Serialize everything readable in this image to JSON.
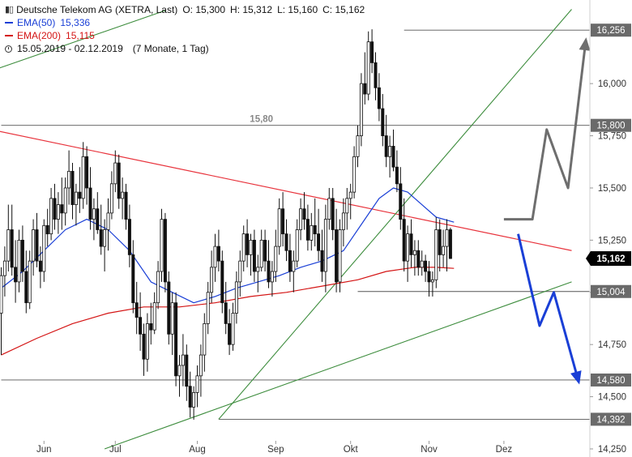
{
  "legend": {
    "title": "Deutsche Telekom AG (XETRA, Last)",
    "ohlc": {
      "o": "O: 15,300",
      "h": "H: 15,312",
      "l": "L: 15,160",
      "c": "C: 15,162"
    },
    "ema50": {
      "label": "EMA(50)",
      "value": "15,336",
      "color": "#1a3fd6"
    },
    "ema200": {
      "label": "EMA(200)",
      "value": "15,115",
      "color": "#d41414"
    },
    "range": "15.05.2019 - 02.12.2019",
    "period": "(7 Monate, 1 Tag)"
  },
  "chart_data": {
    "type": "candlestick",
    "ylim": [
      14.25,
      16.35
    ],
    "y_ticks": [
      {
        "v": 16.0,
        "label": "16,000"
      },
      {
        "v": 15.75,
        "label": "15,750"
      },
      {
        "v": 15.5,
        "label": "15,500"
      },
      {
        "v": 15.25,
        "label": "15,250"
      },
      {
        "v": 15.0,
        "label": "15,000"
      },
      {
        "v": 14.75,
        "label": "14,750"
      },
      {
        "v": 14.5,
        "label": "14,500"
      },
      {
        "v": 14.25,
        "label": "14,250"
      }
    ],
    "x_ticks": [
      {
        "label": "Jun",
        "i": 12
      },
      {
        "label": "Jul",
        "i": 32
      },
      {
        "label": "Aug",
        "i": 55
      },
      {
        "label": "Sep",
        "i": 77
      },
      {
        "label": "Okt",
        "i": 98
      },
      {
        "label": "Nov",
        "i": 120
      },
      {
        "label": "Dez",
        "i": 141
      }
    ],
    "levels": [
      {
        "v": 16.256,
        "label": "16,256",
        "style": "box",
        "from_i": 113
      },
      {
        "v": 15.8,
        "label": "15,800",
        "style": "box",
        "from_i": 0
      },
      {
        "v": 15.004,
        "label": "15,004",
        "style": "box",
        "from_i": 100
      },
      {
        "v": 14.58,
        "label": "14,580",
        "style": "box",
        "from_i": 0
      },
      {
        "v": 14.392,
        "label": "14,392",
        "style": "box",
        "from_i": 61
      },
      {
        "v": 15.162,
        "label": "15,162",
        "style": "last"
      }
    ],
    "note": {
      "text": "15,80",
      "i": 73,
      "v": 15.8
    },
    "candles": [
      [
        14.9,
        15.12,
        14.7,
        15.08
      ],
      [
        15.08,
        15.22,
        14.98,
        15.15
      ],
      [
        15.15,
        15.42,
        15.1,
        15.3
      ],
      [
        15.3,
        15.42,
        15.08,
        15.12
      ],
      [
        15.12,
        15.25,
        14.95,
        15.05
      ],
      [
        15.05,
        15.3,
        15.0,
        15.25
      ],
      [
        15.25,
        15.32,
        15.05,
        15.1
      ],
      [
        15.1,
        15.2,
        14.9,
        14.95
      ],
      [
        14.95,
        15.2,
        14.92,
        15.15
      ],
      [
        15.15,
        15.35,
        15.08,
        15.3
      ],
      [
        15.3,
        15.38,
        15.12,
        15.15
      ],
      [
        15.15,
        15.22,
        15.02,
        15.1
      ],
      [
        15.1,
        15.35,
        15.05,
        15.32
      ],
      [
        15.32,
        15.4,
        15.22,
        15.28
      ],
      [
        15.28,
        15.5,
        15.25,
        15.45
      ],
      [
        15.45,
        15.52,
        15.3,
        15.35
      ],
      [
        15.35,
        15.48,
        15.28,
        15.42
      ],
      [
        15.42,
        15.55,
        15.3,
        15.38
      ],
      [
        15.38,
        15.55,
        15.32,
        15.5
      ],
      [
        15.5,
        15.68,
        15.42,
        15.58
      ],
      [
        15.58,
        15.62,
        15.35,
        15.42
      ],
      [
        15.42,
        15.52,
        15.32,
        15.48
      ],
      [
        15.48,
        15.6,
        15.38,
        15.45
      ],
      [
        15.45,
        15.72,
        15.4,
        15.65
      ],
      [
        15.65,
        15.7,
        15.42,
        15.5
      ],
      [
        15.5,
        15.6,
        15.3,
        15.35
      ],
      [
        15.35,
        15.45,
        15.25,
        15.4
      ],
      [
        15.4,
        15.48,
        15.28,
        15.3
      ],
      [
        15.3,
        15.42,
        15.18,
        15.22
      ],
      [
        15.22,
        15.35,
        15.1,
        15.3
      ],
      [
        15.3,
        15.45,
        15.2,
        15.38
      ],
      [
        15.38,
        15.58,
        15.35,
        15.52
      ],
      [
        15.52,
        15.68,
        15.48,
        15.62
      ],
      [
        15.62,
        15.66,
        15.4,
        15.45
      ],
      [
        15.45,
        15.55,
        15.35,
        15.48
      ],
      [
        15.48,
        15.52,
        15.3,
        15.35
      ],
      [
        15.35,
        15.42,
        15.12,
        15.18
      ],
      [
        15.18,
        15.25,
        14.9,
        14.95
      ],
      [
        14.95,
        15.05,
        14.8,
        14.88
      ],
      [
        14.88,
        15.0,
        14.72,
        14.8
      ],
      [
        14.8,
        14.85,
        14.6,
        14.68
      ],
      [
        14.68,
        14.9,
        14.62,
        14.85
      ],
      [
        14.85,
        14.95,
        14.75,
        14.82
      ],
      [
        14.82,
        15.0,
        14.8,
        14.95
      ],
      [
        14.95,
        15.15,
        14.92,
        15.1
      ],
      [
        15.1,
        15.4,
        15.05,
        15.35
      ],
      [
        15.35,
        15.38,
        15.0,
        15.05
      ],
      [
        15.05,
        15.1,
        14.75,
        14.8
      ],
      [
        14.8,
        15.0,
        14.7,
        14.95
      ],
      [
        14.95,
        15.0,
        14.55,
        14.6
      ],
      [
        14.6,
        14.7,
        14.5,
        14.65
      ],
      [
        14.65,
        14.8,
        14.55,
        14.7
      ],
      [
        14.7,
        14.75,
        14.48,
        14.55
      ],
      [
        14.55,
        14.62,
        14.4,
        14.45
      ],
      [
        14.45,
        14.55,
        14.39,
        14.52
      ],
      [
        14.52,
        14.65,
        14.45,
        14.6
      ],
      [
        14.6,
        14.75,
        14.5,
        14.7
      ],
      [
        14.7,
        14.9,
        14.62,
        14.85
      ],
      [
        14.85,
        15.05,
        14.8,
        15.0
      ],
      [
        15.0,
        15.2,
        14.95,
        15.12
      ],
      [
        15.12,
        15.28,
        15.05,
        15.22
      ],
      [
        15.22,
        15.3,
        15.1,
        15.15
      ],
      [
        15.15,
        15.2,
        14.9,
        14.95
      ],
      [
        14.95,
        15.05,
        14.8,
        14.85
      ],
      [
        14.85,
        14.92,
        14.7,
        14.75
      ],
      [
        14.75,
        14.95,
        14.72,
        14.9
      ],
      [
        14.9,
        15.1,
        14.85,
        15.05
      ],
      [
        15.05,
        15.2,
        14.98,
        15.15
      ],
      [
        15.15,
        15.32,
        15.1,
        15.28
      ],
      [
        15.28,
        15.35,
        15.12,
        15.18
      ],
      [
        15.18,
        15.28,
        15.08,
        15.25
      ],
      [
        15.25,
        15.3,
        15.05,
        15.1
      ],
      [
        15.1,
        15.18,
        15.0,
        15.12
      ],
      [
        15.12,
        15.3,
        15.1,
        15.25
      ],
      [
        15.25,
        15.3,
        15.1,
        15.15
      ],
      [
        15.15,
        15.25,
        15.02,
        15.05
      ],
      [
        15.05,
        15.15,
        14.98,
        15.1
      ],
      [
        15.1,
        15.3,
        15.05,
        15.22
      ],
      [
        15.22,
        15.45,
        15.18,
        15.4
      ],
      [
        15.4,
        15.48,
        15.22,
        15.28
      ],
      [
        15.28,
        15.35,
        15.15,
        15.2
      ],
      [
        15.2,
        15.28,
        15.05,
        15.1
      ],
      [
        15.1,
        15.2,
        15.0,
        15.15
      ],
      [
        15.15,
        15.35,
        15.12,
        15.3
      ],
      [
        15.3,
        15.45,
        15.25,
        15.4
      ],
      [
        15.4,
        15.48,
        15.3,
        15.35
      ],
      [
        15.35,
        15.42,
        15.2,
        15.25
      ],
      [
        15.25,
        15.38,
        15.2,
        15.32
      ],
      [
        15.32,
        15.45,
        15.22,
        15.28
      ],
      [
        15.28,
        15.4,
        15.15,
        15.2
      ],
      [
        15.2,
        15.3,
        15.05,
        15.1
      ],
      [
        15.1,
        15.42,
        15.0,
        15.35
      ],
      [
        15.35,
        15.5,
        15.3,
        15.45
      ],
      [
        15.45,
        15.5,
        15.25,
        15.3
      ],
      [
        15.3,
        15.4,
        15.0,
        15.05
      ],
      [
        15.05,
        15.35,
        15.0,
        15.3
      ],
      [
        15.3,
        15.45,
        15.22,
        15.38
      ],
      [
        15.38,
        15.5,
        15.3,
        15.45
      ],
      [
        15.45,
        15.52,
        15.35,
        15.48
      ],
      [
        15.48,
        15.7,
        15.45,
        15.65
      ],
      [
        15.65,
        15.8,
        15.6,
        15.75
      ],
      [
        15.75,
        16.05,
        15.7,
        16.0
      ],
      [
        16.0,
        16.15,
        15.9,
        15.95
      ],
      [
        15.95,
        16.25,
        15.92,
        16.2
      ],
      [
        16.2,
        16.26,
        16.05,
        16.1
      ],
      [
        16.1,
        16.15,
        15.92,
        15.98
      ],
      [
        15.98,
        16.05,
        15.82,
        15.88
      ],
      [
        15.88,
        15.95,
        15.7,
        15.75
      ],
      [
        15.75,
        15.85,
        15.6,
        15.65
      ],
      [
        15.65,
        15.75,
        15.55,
        15.7
      ],
      [
        15.7,
        15.78,
        15.58,
        15.6
      ],
      [
        15.6,
        15.68,
        15.48,
        15.52
      ],
      [
        15.52,
        15.6,
        15.3,
        15.35
      ],
      [
        15.35,
        15.45,
        15.1,
        15.15
      ],
      [
        15.15,
        15.32,
        15.05,
        15.28
      ],
      [
        15.28,
        15.35,
        15.12,
        15.18
      ],
      [
        15.18,
        15.25,
        15.08,
        15.2
      ],
      [
        15.2,
        15.25,
        15.08,
        15.12
      ],
      [
        15.12,
        15.2,
        15.08,
        15.15
      ],
      [
        15.15,
        15.18,
        15.05,
        15.1
      ],
      [
        15.1,
        15.15,
        14.98,
        15.05
      ],
      [
        15.05,
        15.1,
        14.98,
        15.06
      ],
      [
        15.06,
        15.36,
        15.02,
        15.3
      ],
      [
        15.3,
        15.35,
        15.1,
        15.18
      ],
      [
        15.18,
        15.3,
        15.12,
        15.22
      ],
      [
        15.22,
        15.35,
        15.1,
        15.3
      ],
      [
        15.3,
        15.31,
        15.16,
        15.162
      ]
    ],
    "ema50": [
      [
        0,
        15.02
      ],
      [
        6,
        15.1
      ],
      [
        12,
        15.2
      ],
      [
        18,
        15.3
      ],
      [
        24,
        15.35
      ],
      [
        30,
        15.3
      ],
      [
        36,
        15.2
      ],
      [
        42,
        15.05
      ],
      [
        48,
        15.0
      ],
      [
        54,
        14.95
      ],
      [
        60,
        14.98
      ],
      [
        66,
        15.02
      ],
      [
        72,
        15.05
      ],
      [
        78,
        15.08
      ],
      [
        84,
        15.12
      ],
      [
        90,
        15.15
      ],
      [
        96,
        15.2
      ],
      [
        102,
        15.35
      ],
      [
        106,
        15.45
      ],
      [
        110,
        15.5
      ],
      [
        114,
        15.48
      ],
      [
        118,
        15.42
      ],
      [
        122,
        15.36
      ],
      [
        127,
        15.336
      ]
    ],
    "ema200": [
      [
        0,
        14.7
      ],
      [
        10,
        14.78
      ],
      [
        20,
        14.85
      ],
      [
        30,
        14.9
      ],
      [
        40,
        14.93
      ],
      [
        50,
        14.93
      ],
      [
        60,
        14.95
      ],
      [
        70,
        14.98
      ],
      [
        80,
        15.0
      ],
      [
        90,
        15.03
      ],
      [
        100,
        15.06
      ],
      [
        108,
        15.1
      ],
      [
        116,
        15.12
      ],
      [
        122,
        15.12
      ],
      [
        127,
        15.115
      ]
    ],
    "trendlines": [
      {
        "color": "#e8333c",
        "width": 1.2,
        "p1": [
          -3,
          15.78
        ],
        "p2": [
          160,
          15.2
        ]
      },
      {
        "color": "#3c8c3c",
        "width": 1.1,
        "p1": [
          -3,
          16.06
        ],
        "p2": [
          46,
          16.35
        ]
      },
      {
        "color": "#3c8c3c",
        "width": 1.1,
        "p1": [
          61,
          14.392
        ],
        "p2": [
          160,
          16.356
        ]
      },
      {
        "color": "#3c8c3c",
        "width": 1.1,
        "p1": [
          29,
          14.25
        ],
        "p2": [
          160,
          15.05
        ]
      }
    ],
    "forecast_paths": [
      {
        "color": "#6e6e6e",
        "width": 3,
        "points": [
          [
            141,
            15.35
          ],
          [
            149,
            15.35
          ],
          [
            153,
            15.78
          ],
          [
            159,
            15.5
          ],
          [
            164,
            16.21
          ]
        ]
      },
      {
        "color": "#1a3fd6",
        "width": 3,
        "points": [
          [
            145,
            15.28
          ],
          [
            151,
            14.84
          ],
          [
            155,
            15.0
          ],
          [
            162,
            14.57
          ]
        ]
      }
    ]
  }
}
